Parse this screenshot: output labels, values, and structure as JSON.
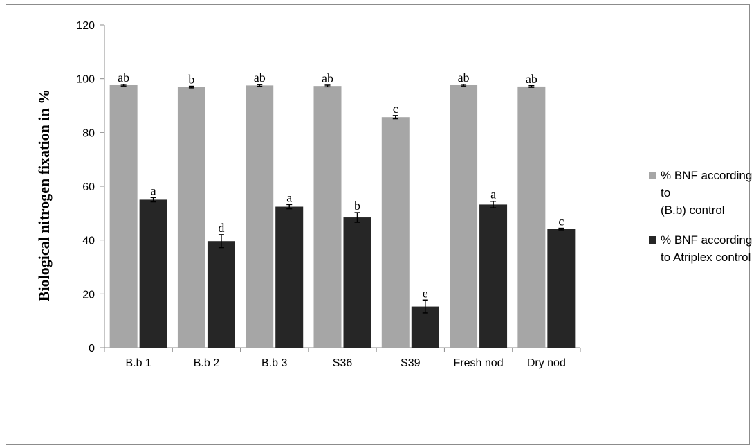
{
  "chart_data": {
    "type": "bar",
    "ylabel": "Biological nitrogen fixation in %",
    "xlabel": "",
    "ylim": [
      0,
      120
    ],
    "yticks": [
      0,
      20,
      40,
      60,
      80,
      100,
      120
    ],
    "categories": [
      "B.b 1",
      "B.b 2",
      "B.b 3",
      "S36",
      "S39",
      "Fresh nod",
      "Dry nod"
    ],
    "series": [
      {
        "name": "% BNF according to\n(B.b) control",
        "color": "#a6a6a6",
        "values": [
          97.6,
          96.9,
          97.5,
          97.3,
          85.7,
          97.6,
          97.1
        ],
        "errors": [
          0.3,
          0.3,
          0.3,
          0.3,
          0.6,
          0.3,
          0.3
        ],
        "labels": [
          "ab",
          "b",
          "ab",
          "ab",
          "c",
          "ab",
          "ab"
        ]
      },
      {
        "name": "  % BNF according\nto  Atriplex control",
        "color": "#262626",
        "values": [
          55.0,
          39.6,
          52.4,
          48.4,
          15.3,
          53.2,
          44.1
        ],
        "errors": [
          0.8,
          2.4,
          0.8,
          1.8,
          2.4,
          1.2,
          0.3
        ],
        "labels": [
          "a",
          "d",
          "a",
          "b",
          "e",
          "a",
          "c"
        ]
      }
    ],
    "legend_position": "right",
    "grid": false
  }
}
